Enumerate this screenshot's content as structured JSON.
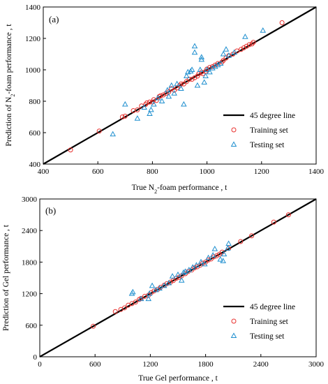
{
  "chart_data": [
    {
      "type": "scatter",
      "panel_label": "(a)",
      "xlabel": "True N2-foam performance , t",
      "xlabel_parts": {
        "pre": "True N",
        "sub": "2",
        "post": "-foam performance , t"
      },
      "ylabel": "Prediction of N2-foam performance , t",
      "ylabel_parts": {
        "pre": "Prediction of N",
        "sub": "2",
        "post": "-foam performance , t"
      },
      "xlim": [
        400,
        1400
      ],
      "ylim": [
        400,
        1400
      ],
      "xticks": [
        400,
        600,
        800,
        1000,
        1200,
        1400
      ],
      "yticks": [
        400,
        600,
        800,
        1000,
        1200,
        1400
      ],
      "legend_position": "bottom-right",
      "series": [
        {
          "name": "45 degree line",
          "kind": "line",
          "color": "#000000",
          "x": [
            400,
            1400
          ],
          "y": [
            400,
            1400
          ]
        },
        {
          "name": "Training set",
          "kind": "circle",
          "color": "#e8312e",
          "points": [
            [
              500,
              490
            ],
            [
              605,
              610
            ],
            [
              690,
              700
            ],
            [
              700,
              705
            ],
            [
              730,
              740
            ],
            [
              745,
              745
            ],
            [
              760,
              770
            ],
            [
              775,
              780
            ],
            [
              780,
              790
            ],
            [
              790,
              795
            ],
            [
              800,
              795
            ],
            [
              805,
              810
            ],
            [
              815,
              805
            ],
            [
              825,
              830
            ],
            [
              830,
              835
            ],
            [
              840,
              840
            ],
            [
              850,
              850
            ],
            [
              860,
              860
            ],
            [
              870,
              880
            ],
            [
              880,
              870
            ],
            [
              890,
              885
            ],
            [
              900,
              900
            ],
            [
              905,
              910
            ],
            [
              915,
              910
            ],
            [
              925,
              925
            ],
            [
              935,
              940
            ],
            [
              945,
              940
            ],
            [
              955,
              950
            ],
            [
              965,
              960
            ],
            [
              970,
              975
            ],
            [
              980,
              985
            ],
            [
              985,
              975
            ],
            [
              995,
              990
            ],
            [
              1000,
              1005
            ],
            [
              1010,
              1015
            ],
            [
              1020,
              1020
            ],
            [
              1030,
              1030
            ],
            [
              1040,
              1040
            ],
            [
              1055,
              1050
            ],
            [
              1060,
              1060
            ],
            [
              1070,
              1075
            ],
            [
              1080,
              1090
            ],
            [
              1095,
              1100
            ],
            [
              1110,
              1120
            ],
            [
              1125,
              1130
            ],
            [
              1135,
              1140
            ],
            [
              1145,
              1150
            ],
            [
              1155,
              1160
            ],
            [
              1165,
              1165
            ],
            [
              1170,
              1175
            ],
            [
              1275,
              1300
            ]
          ]
        },
        {
          "name": "Testing set",
          "kind": "triangle",
          "color": "#1f8fcf",
          "points": [
            [
              655,
              590
            ],
            [
              700,
              780
            ],
            [
              745,
              690
            ],
            [
              770,
              760
            ],
            [
              790,
              720
            ],
            [
              795,
              745
            ],
            [
              805,
              780
            ],
            [
              820,
              820
            ],
            [
              835,
              800
            ],
            [
              855,
              870
            ],
            [
              860,
              830
            ],
            [
              870,
              900
            ],
            [
              880,
              850
            ],
            [
              890,
              910
            ],
            [
              905,
              880
            ],
            [
              915,
              780
            ],
            [
              925,
              960
            ],
            [
              930,
              985
            ],
            [
              940,
              990
            ],
            [
              945,
              1000
            ],
            [
              955,
              1110
            ],
            [
              955,
              1150
            ],
            [
              965,
              900
            ],
            [
              975,
              1000
            ],
            [
              980,
              1080
            ],
            [
              980,
              1065
            ],
            [
              990,
              920
            ],
            [
              995,
              960
            ],
            [
              1000,
              1000
            ],
            [
              1010,
              985
            ],
            [
              1020,
              1010
            ],
            [
              1030,
              1020
            ],
            [
              1040,
              1030
            ],
            [
              1050,
              1040
            ],
            [
              1060,
              1100
            ],
            [
              1070,
              1130
            ],
            [
              1080,
              1090
            ],
            [
              1100,
              1110
            ],
            [
              1140,
              1210
            ],
            [
              1205,
              1250
            ]
          ]
        }
      ]
    },
    {
      "type": "scatter",
      "panel_label": "(b)",
      "xlabel": "True Gel performance , t",
      "ylabel": "Prediction of Gel performance , t",
      "xlim": [
        0,
        3000
      ],
      "ylim": [
        0,
        3000
      ],
      "xticks": [
        0,
        600,
        1200,
        1800,
        2400,
        3000
      ],
      "yticks": [
        0,
        600,
        1200,
        1800,
        2400,
        3000
      ],
      "legend_position": "bottom-right",
      "series": [
        {
          "name": "45 degree line",
          "kind": "line",
          "color": "#000000",
          "x": [
            0,
            3000
          ],
          "y": [
            0,
            3000
          ]
        },
        {
          "name": "Training set",
          "kind": "circle",
          "color": "#e8312e",
          "points": [
            [
              580,
              580
            ],
            [
              820,
              860
            ],
            [
              880,
              900
            ],
            [
              920,
              930
            ],
            [
              960,
              980
            ],
            [
              1000,
              1010
            ],
            [
              1040,
              1040
            ],
            [
              1080,
              1090
            ],
            [
              1100,
              1110
            ],
            [
              1140,
              1150
            ],
            [
              1180,
              1170
            ],
            [
              1210,
              1220
            ],
            [
              1240,
              1250
            ],
            [
              1280,
              1280
            ],
            [
              1310,
              1320
            ],
            [
              1350,
              1360
            ],
            [
              1380,
              1390
            ],
            [
              1420,
              1420
            ],
            [
              1450,
              1450
            ],
            [
              1480,
              1490
            ],
            [
              1510,
              1510
            ],
            [
              1540,
              1540
            ],
            [
              1580,
              1580
            ],
            [
              1610,
              1620
            ],
            [
              1650,
              1650
            ],
            [
              1680,
              1690
            ],
            [
              1710,
              1710
            ],
            [
              1740,
              1740
            ],
            [
              1770,
              1780
            ],
            [
              1800,
              1800
            ],
            [
              1830,
              1840
            ],
            [
              1860,
              1860
            ],
            [
              1890,
              1900
            ],
            [
              1920,
              1920
            ],
            [
              1950,
              1950
            ],
            [
              1980,
              1990
            ],
            [
              2050,
              2060
            ],
            [
              2180,
              2190
            ],
            [
              2300,
              2300
            ],
            [
              2540,
              2560
            ],
            [
              2700,
              2700
            ]
          ]
        },
        {
          "name": "Testing set",
          "kind": "triangle",
          "color": "#1f8fcf",
          "points": [
            [
              1000,
              1200
            ],
            [
              1010,
              1230
            ],
            [
              1100,
              1100
            ],
            [
              1180,
              1100
            ],
            [
              1190,
              1200
            ],
            [
              1220,
              1350
            ],
            [
              1260,
              1270
            ],
            [
              1300,
              1300
            ],
            [
              1350,
              1350
            ],
            [
              1400,
              1400
            ],
            [
              1440,
              1530
            ],
            [
              1500,
              1560
            ],
            [
              1540,
              1450
            ],
            [
              1560,
              1600
            ],
            [
              1580,
              1620
            ],
            [
              1620,
              1650
            ],
            [
              1660,
              1700
            ],
            [
              1700,
              1740
            ],
            [
              1750,
              1800
            ],
            [
              1790,
              1760
            ],
            [
              1830,
              1880
            ],
            [
              1880,
              1930
            ],
            [
              1900,
              2050
            ],
            [
              1960,
              1850
            ],
            [
              1990,
              1820
            ],
            [
              2000,
              1950
            ],
            [
              2040,
              2060
            ],
            [
              2050,
              2150
            ]
          ]
        }
      ]
    }
  ]
}
